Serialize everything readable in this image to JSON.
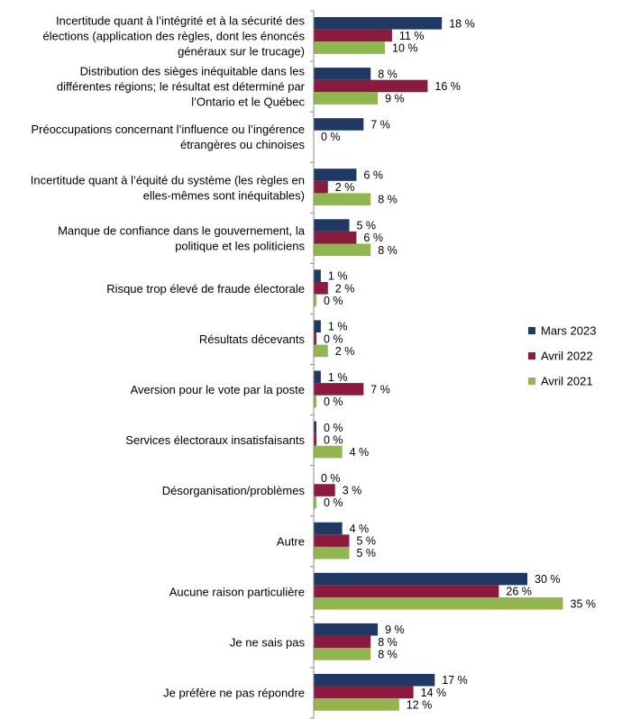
{
  "chart_data": {
    "type": "bar",
    "orientation": "horizontal",
    "title": "",
    "xlabel": "",
    "ylabel": "",
    "value_unit": "%",
    "xlim": [
      0,
      40
    ],
    "grid": false,
    "legend_position": "right",
    "categories": [
      [
        "Incertitude quant à l’intégrité et à la sécurité des",
        "élections (application des règles, dont les énoncés",
        "généraux sur le trucage)"
      ],
      [
        "Distribution des sièges inéquitable dans les",
        "différentes régions; le résultat est déterminé par",
        "l’Ontario et le Québec"
      ],
      [
        "Préoccupations concernant l’influence ou l’ingérence",
        "étrangères ou chinoises"
      ],
      [
        "Incertitude quant à l’équité du système (les règles en",
        "elles-mêmes sont inéquitables)"
      ],
      [
        "Manque de confiance dans le gouvernement, la",
        "politique et les politiciens"
      ],
      [
        "Risque trop élevé de fraude électorale"
      ],
      [
        "Résultats décevants"
      ],
      [
        "Aversion pour le vote par la poste"
      ],
      [
        "Services électoraux insatisfaisants"
      ],
      [
        "Désorganisation/problèmes"
      ],
      [
        "Autre"
      ],
      [
        "Aucune raison particulière"
      ],
      [
        "Je ne sais pas"
      ],
      [
        "Je préfère ne pas répondre"
      ]
    ],
    "series": [
      {
        "name": "Mars 2023",
        "color": "#1f3864",
        "values": [
          18,
          8,
          7,
          6,
          5,
          1,
          1,
          1,
          0,
          null,
          4,
          30,
          9,
          17
        ],
        "labels": [
          "18 %",
          "8 %",
          "7 %",
          "6 %",
          "5 %",
          "1 %",
          "1 %",
          "1 %",
          "0 %",
          "0 %",
          "4 %",
          "30 %",
          "9 %",
          "17 %"
        ]
      },
      {
        "name": "Avril 2022",
        "color": "#8b1a3f",
        "values": [
          11,
          16,
          null,
          2,
          6,
          2,
          0,
          7,
          0,
          3,
          5,
          26,
          8,
          14
        ],
        "labels": [
          "11 %",
          "16 %",
          "0 %",
          "2 %",
          "6 %",
          "2 %",
          "0 %",
          "7 %",
          "0 %",
          "3 %",
          "5 %",
          "26 %",
          "8 %",
          "14 %"
        ]
      },
      {
        "name": "Avril 2021",
        "color": "#92b64f",
        "values": [
          10,
          9,
          null,
          8,
          8,
          0,
          2,
          0,
          4,
          0,
          5,
          35,
          8,
          12
        ],
        "labels": [
          "10 %",
          "9 %",
          "",
          "8 %",
          "8 %",
          "0 %",
          "2 %",
          "0 %",
          "4 %",
          "0 %",
          "5 %",
          "35 %",
          "8 %",
          "12 %"
        ]
      }
    ]
  }
}
